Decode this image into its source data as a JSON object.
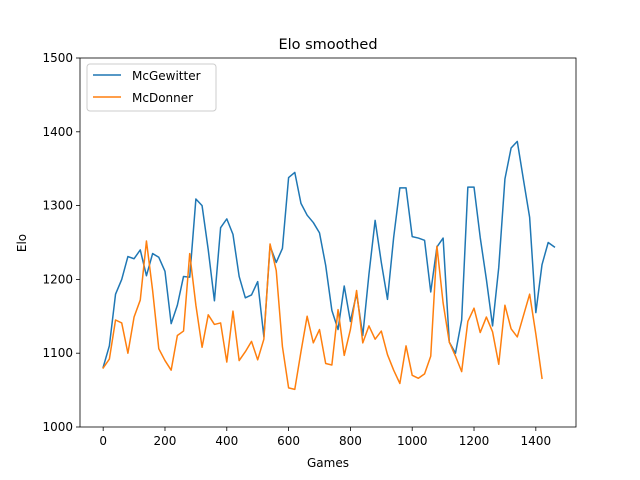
{
  "chart_data": {
    "type": "line",
    "title": "Elo smoothed",
    "xlabel": "Games",
    "ylabel": "Elo",
    "xlim": [
      -75,
      1530
    ],
    "ylim": [
      1000,
      1500
    ],
    "xticks": [
      0,
      200,
      400,
      600,
      800,
      1000,
      1200,
      1400
    ],
    "yticks": [
      1000,
      1100,
      1200,
      1300,
      1400,
      1500
    ],
    "grid": false,
    "legend_position": "upper-left",
    "series": [
      {
        "name": "McGewitter",
        "color": "#1f77b4",
        "x": [
          0,
          20,
          40,
          60,
          80,
          100,
          120,
          140,
          160,
          180,
          200,
          220,
          240,
          260,
          280,
          300,
          320,
          340,
          360,
          380,
          400,
          420,
          440,
          460,
          480,
          500,
          520,
          540,
          560,
          580,
          600,
          620,
          640,
          660,
          680,
          700,
          720,
          740,
          760,
          780,
          800,
          820,
          840,
          860,
          880,
          900,
          920,
          940,
          960,
          980,
          1000,
          1020,
          1040,
          1060,
          1080,
          1100,
          1120,
          1140,
          1160,
          1180,
          1200,
          1220,
          1240,
          1260,
          1280,
          1300,
          1320,
          1340,
          1360,
          1380,
          1400,
          1420,
          1440,
          1460
        ],
        "y": [
          1081,
          1110,
          1180,
          1200,
          1231,
          1228,
          1240,
          1205,
          1235,
          1230,
          1211,
          1140,
          1165,
          1204,
          1203,
          1309,
          1300,
          1240,
          1171,
          1270,
          1282,
          1261,
          1204,
          1175,
          1179,
          1197,
          1122,
          1245,
          1223,
          1242,
          1338,
          1345,
          1303,
          1287,
          1277,
          1263,
          1219,
          1158,
          1132,
          1191,
          1143,
          1181,
          1124,
          1207,
          1280,
          1223,
          1173,
          1257,
          1324,
          1324,
          1258,
          1256,
          1253,
          1183,
          1244,
          1256,
          1115,
          1100,
          1145,
          1325,
          1325,
          1257,
          1200,
          1137,
          1216,
          1336,
          1378,
          1387,
          1335,
          1284,
          1155,
          1220,
          1250,
          1244
        ]
      },
      {
        "name": "McDonner",
        "color": "#ff7f0e",
        "x": [
          0,
          20,
          40,
          60,
          80,
          100,
          120,
          140,
          160,
          180,
          200,
          220,
          240,
          260,
          280,
          300,
          320,
          340,
          360,
          380,
          400,
          420,
          440,
          460,
          480,
          500,
          520,
          540,
          560,
          580,
          600,
          620,
          640,
          660,
          680,
          700,
          720,
          740,
          760,
          780,
          800,
          820,
          840,
          860,
          880,
          900,
          920,
          940,
          960,
          980,
          1000,
          1020,
          1040,
          1060,
          1080,
          1100,
          1120,
          1140,
          1160,
          1180,
          1200,
          1220,
          1240,
          1260,
          1280,
          1300,
          1320,
          1340,
          1360,
          1380,
          1400,
          1420
        ],
        "y": [
          1080,
          1092,
          1145,
          1141,
          1100,
          1149,
          1172,
          1252,
          1185,
          1106,
          1090,
          1077,
          1124,
          1130,
          1235,
          1165,
          1108,
          1152,
          1139,
          1141,
          1088,
          1157,
          1090,
          1102,
          1116,
          1091,
          1119,
          1248,
          1212,
          1109,
          1053,
          1051,
          1102,
          1150,
          1114,
          1132,
          1086,
          1084,
          1159,
          1097,
          1132,
          1185,
          1114,
          1137,
          1119,
          1130,
          1098,
          1077,
          1059,
          1110,
          1070,
          1066,
          1072,
          1096,
          1245,
          1168,
          1115,
          1096,
          1075,
          1143,
          1161,
          1128,
          1149,
          1129,
          1085,
          1165,
          1133,
          1122,
          1151,
          1180,
          1126,
          1066
        ]
      }
    ]
  }
}
